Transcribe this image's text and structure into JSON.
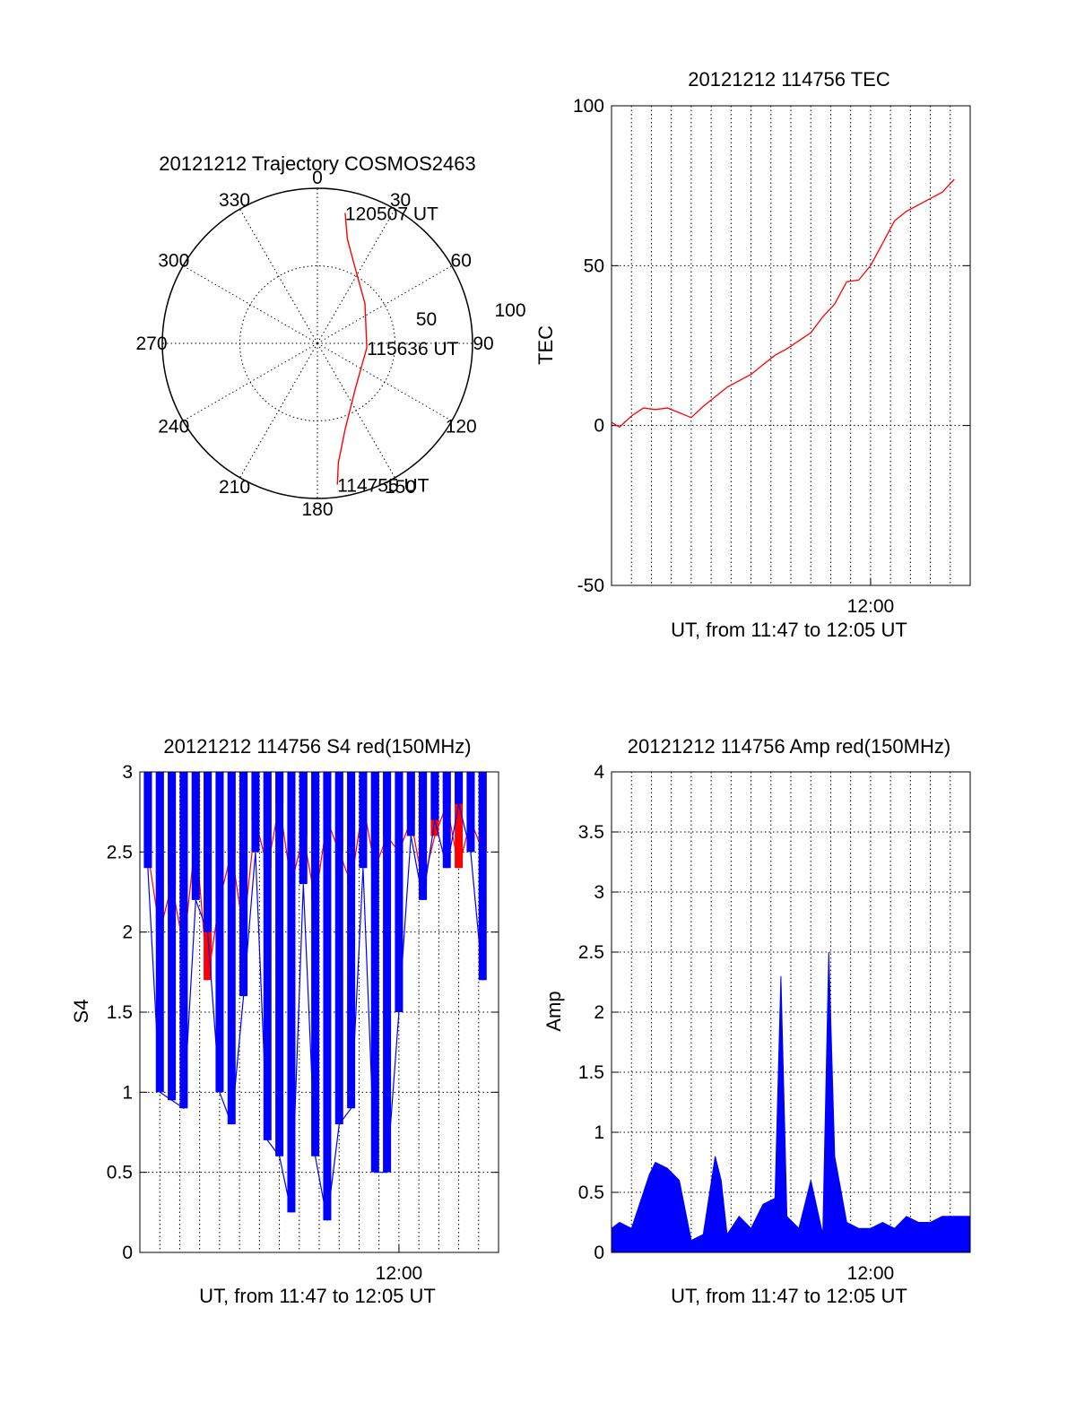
{
  "chart_data": [
    {
      "id": "trajectory",
      "type": "polar",
      "title": "20121212 Trajectory COSMOS2463",
      "azimuth_labels": [
        "0",
        "30",
        "60",
        "90",
        "120",
        "150",
        "180",
        "210",
        "240",
        "270",
        "300",
        "330"
      ],
      "radial_labels": [
        "50",
        "100"
      ],
      "track_color": "#ff0000",
      "track_points": [
        {
          "az": 12,
          "zenith": 86
        },
        {
          "az": 16,
          "zenith": 70
        },
        {
          "az": 26,
          "zenith": 55
        },
        {
          "az": 50,
          "zenith": 40
        },
        {
          "az": 95,
          "zenith": 32
        },
        {
          "az": 140,
          "zenith": 38
        },
        {
          "az": 162,
          "zenith": 58
        },
        {
          "az": 170,
          "zenith": 78
        },
        {
          "az": 172,
          "zenith": 92
        }
      ],
      "track_labels": [
        {
          "text": "120507 UT",
          "az": 12,
          "zenith": 86
        },
        {
          "text": "115636 UT",
          "az": 95,
          "zenith": 32
        },
        {
          "text": "114755 UT",
          "az": 172,
          "zenith": 92
        }
      ]
    },
    {
      "id": "tec",
      "type": "line",
      "title": "20121212 114756 TEC",
      "ylabel": "TEC",
      "xlabel": "UT, from 11:47 to 12:05 UT",
      "x_tick_labels": [
        {
          "t": 12.0,
          "label": "12:00"
        }
      ],
      "ylim": [
        -50,
        100
      ],
      "yticks": [
        -50,
        0,
        50,
        100
      ],
      "xlim": [
        11.7833,
        12.0833
      ],
      "series": [
        {
          "color": "#ff0000",
          "points": [
            [
              11.7833,
              1
            ],
            [
              11.79,
              -0.5
            ],
            [
              11.8,
              3
            ],
            [
              11.81,
              5.5
            ],
            [
              11.82,
              5
            ],
            [
              11.83,
              5.5
            ],
            [
              11.84,
              4
            ],
            [
              11.85,
              2.5
            ],
            [
              11.86,
              6
            ],
            [
              11.87,
              9
            ],
            [
              11.88,
              12
            ],
            [
              11.89,
              14
            ],
            [
              11.9,
              16
            ],
            [
              11.91,
              19
            ],
            [
              11.92,
              22
            ],
            [
              11.93,
              24
            ],
            [
              11.94,
              26.5
            ],
            [
              11.95,
              29
            ],
            [
              11.96,
              34
            ],
            [
              11.97,
              38
            ],
            [
              11.98,
              45
            ],
            [
              11.99,
              45.5
            ],
            [
              12.0,
              50
            ],
            [
              12.01,
              57
            ],
            [
              12.02,
              64
            ],
            [
              12.03,
              67
            ],
            [
              12.04,
              69
            ],
            [
              12.05,
              71
            ],
            [
              12.06,
              73
            ],
            [
              12.07,
              77
            ]
          ]
        }
      ]
    },
    {
      "id": "s4",
      "type": "line",
      "title": "20121212 114756 S4 red(150MHz)",
      "ylabel": "S4",
      "xlabel": "UT, from 11:47 to 12:05 UT",
      "x_tick_labels": [
        {
          "t": 12.0,
          "label": "12:00"
        }
      ],
      "ylim": [
        0,
        3
      ],
      "yticks": [
        "0",
        "0.5",
        "1",
        "1.5",
        "2",
        "2.5",
        "3"
      ],
      "xlim": [
        11.7833,
        12.0833
      ],
      "series": [
        {
          "color": "#ff0000",
          "points": [
            [
              11.79,
              2.5
            ],
            [
              11.8,
              2.0
            ],
            [
              11.81,
              2.3
            ],
            [
              11.82,
              1.9
            ],
            [
              11.83,
              2.6
            ],
            [
              11.84,
              1.7
            ],
            [
              11.85,
              2.2
            ],
            [
              11.86,
              2.5
            ],
            [
              11.87,
              2.0
            ],
            [
              11.88,
              2.7
            ],
            [
              11.89,
              2.4
            ],
            [
              11.9,
              2.8
            ],
            [
              11.91,
              2.3
            ],
            [
              11.92,
              2.6
            ],
            [
              11.93,
              2.2
            ],
            [
              11.94,
              2.7
            ],
            [
              11.95,
              2.5
            ],
            [
              11.96,
              2.3
            ],
            [
              11.97,
              2.8
            ],
            [
              11.98,
              2.4
            ],
            [
              11.99,
              2.6
            ],
            [
              12.0,
              2.5
            ],
            [
              12.01,
              2.7
            ],
            [
              12.02,
              2.3
            ],
            [
              12.03,
              2.6
            ],
            [
              12.04,
              2.8
            ],
            [
              12.05,
              2.4
            ],
            [
              12.06,
              2.7
            ],
            [
              12.07,
              2.5
            ]
          ]
        },
        {
          "color": "#0000ff",
          "points": [
            [
              11.79,
              2.4
            ],
            [
              11.8,
              1.0
            ],
            [
              11.81,
              0.95
            ],
            [
              11.82,
              0.9
            ],
            [
              11.83,
              2.2
            ],
            [
              11.84,
              2.0
            ],
            [
              11.85,
              1.0
            ],
            [
              11.86,
              0.8
            ],
            [
              11.87,
              1.6
            ],
            [
              11.88,
              2.5
            ],
            [
              11.89,
              0.7
            ],
            [
              11.9,
              0.6
            ],
            [
              11.91,
              0.25
            ],
            [
              11.92,
              2.3
            ],
            [
              11.93,
              0.6
            ],
            [
              11.94,
              0.2
            ],
            [
              11.95,
              0.8
            ],
            [
              11.96,
              0.9
            ],
            [
              11.97,
              2.4
            ],
            [
              11.98,
              0.5
            ],
            [
              11.99,
              0.5
            ],
            [
              12.0,
              1.5
            ],
            [
              12.01,
              2.6
            ],
            [
              12.02,
              2.2
            ],
            [
              12.03,
              2.7
            ],
            [
              12.04,
              2.4
            ],
            [
              12.05,
              2.8
            ],
            [
              12.06,
              2.5
            ],
            [
              12.07,
              1.7
            ]
          ]
        }
      ]
    },
    {
      "id": "amp",
      "type": "line",
      "title": "20121212 114756 Amp red(150MHz)",
      "ylabel": "Amp",
      "xlabel": "UT, from 11:47 to 12:05 UT",
      "x_tick_labels": [
        {
          "t": 12.0,
          "label": "12:00"
        }
      ],
      "ylim": [
        0,
        4
      ],
      "yticks": [
        "0",
        "0.5",
        "1",
        "1.5",
        "2",
        "2.5",
        "3",
        "3.5",
        "4"
      ],
      "xlim": [
        11.7833,
        12.0833
      ],
      "series": [
        {
          "color": "#0000ff",
          "points": [
            [
              11.7833,
              0.2
            ],
            [
              11.79,
              0.25
            ],
            [
              11.8,
              0.2
            ],
            [
              11.81,
              0.5
            ],
            [
              11.815,
              0.65
            ],
            [
              11.82,
              0.75
            ],
            [
              11.83,
              0.7
            ],
            [
              11.84,
              0.6
            ],
            [
              11.85,
              0.1
            ],
            [
              11.86,
              0.15
            ],
            [
              11.87,
              0.8
            ],
            [
              11.875,
              0.6
            ],
            [
              11.88,
              0.15
            ],
            [
              11.89,
              0.3
            ],
            [
              11.9,
              0.2
            ],
            [
              11.91,
              0.4
            ],
            [
              11.92,
              0.45
            ],
            [
              11.925,
              2.3
            ],
            [
              11.93,
              0.3
            ],
            [
              11.94,
              0.2
            ],
            [
              11.95,
              0.6
            ],
            [
              11.96,
              0.15
            ],
            [
              11.965,
              2.5
            ],
            [
              11.97,
              0.8
            ],
            [
              11.98,
              0.25
            ],
            [
              11.99,
              0.2
            ],
            [
              12.0,
              0.2
            ],
            [
              12.01,
              0.25
            ],
            [
              12.02,
              0.2
            ],
            [
              12.03,
              0.3
            ],
            [
              12.04,
              0.25
            ],
            [
              12.05,
              0.25
            ],
            [
              12.06,
              0.3
            ],
            [
              12.07,
              0.3
            ],
            [
              12.0833,
              0.3
            ]
          ]
        }
      ]
    }
  ]
}
